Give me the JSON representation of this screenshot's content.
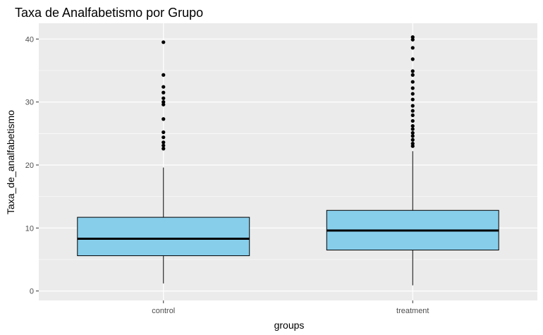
{
  "chart_data": {
    "type": "boxplot",
    "title": "Taxa de Analfabetismo por Grupo",
    "xlabel": "groups",
    "ylabel": "Taxa_de_analfabetismo",
    "ylim": [
      -1.5,
      42.5
    ],
    "yticks": [
      0,
      10,
      20,
      30,
      40
    ],
    "categories": [
      "control",
      "treatment"
    ],
    "boxes": [
      {
        "category": "control",
        "min": 1.2,
        "q1": 5.6,
        "median": 8.3,
        "q3": 11.7,
        "max": 19.6,
        "outliers": [
          22.6,
          23.1,
          23.6,
          24.4,
          25.2,
          27.3,
          29.6,
          30.0,
          30.6,
          31.5,
          32.4,
          34.3,
          39.5
        ]
      },
      {
        "category": "treatment",
        "min": 0.9,
        "q1": 6.5,
        "median": 9.6,
        "q3": 12.8,
        "max": 22.2,
        "outliers": [
          23.0,
          23.4,
          24.0,
          24.6,
          25.1,
          25.7,
          26.2,
          27.0,
          27.9,
          28.6,
          29.4,
          30.4,
          31.3,
          32.2,
          33.2,
          34.3,
          34.9,
          36.8,
          38.6,
          39.9,
          40.3
        ]
      }
    ],
    "colors": {
      "panel_background": "#ebebeb",
      "grid": "#ffffff",
      "box_fill": "#87ceeb",
      "box_stroke": "#000000",
      "point": "#000000"
    },
    "grid": true,
    "legend": "none"
  }
}
